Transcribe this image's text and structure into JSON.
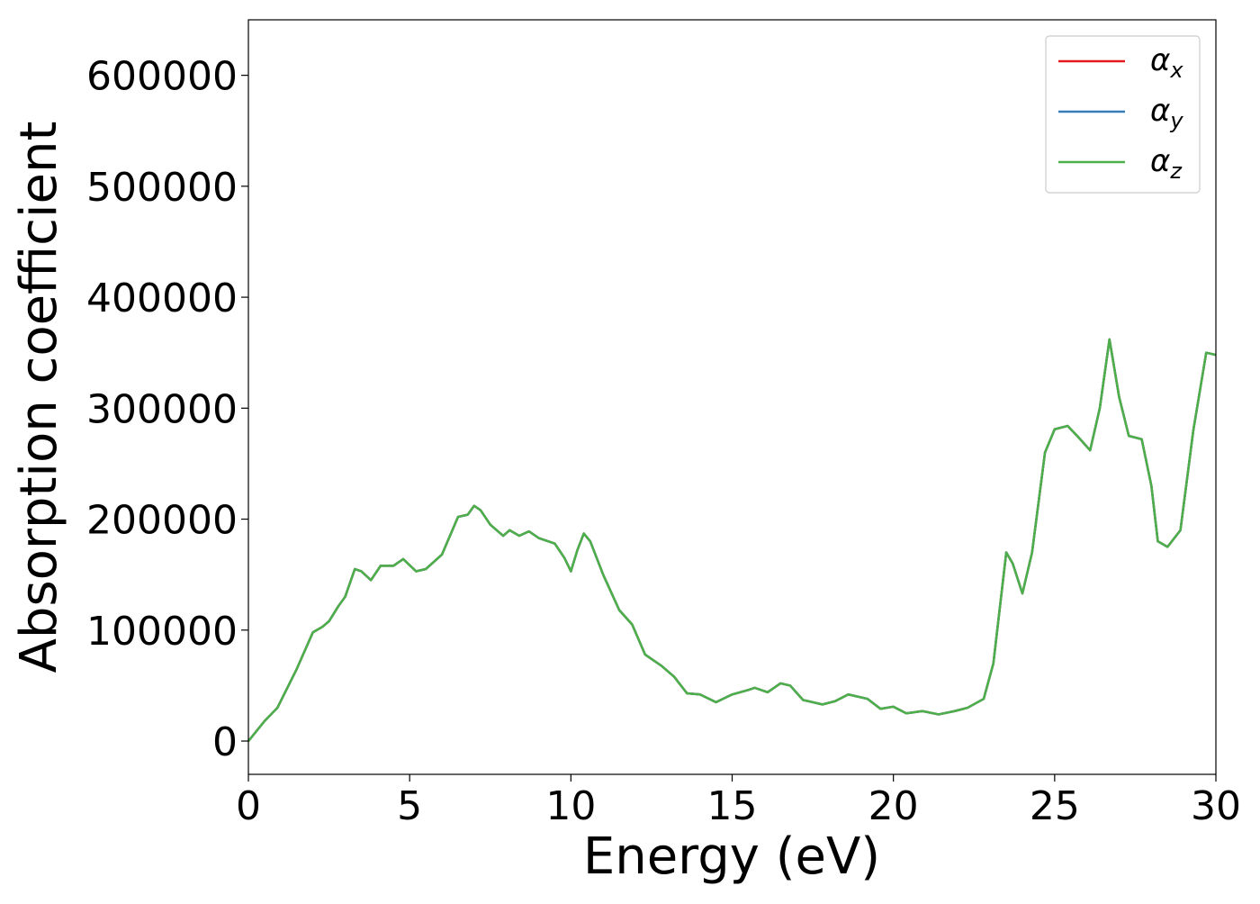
{
  "chart_data": {
    "type": "line",
    "xlabel": "Energy (eV)",
    "ylabel": "Absorption coefficient",
    "x": [
      0,
      0.5,
      0.9,
      1.5,
      2.0,
      2.3,
      2.5,
      2.8,
      3.0,
      3.3,
      3.5,
      3.8,
      4.1,
      4.5,
      4.8,
      5.2,
      5.5,
      6.0,
      6.5,
      6.8,
      7.0,
      7.2,
      7.5,
      7.9,
      8.1,
      8.4,
      8.7,
      9.0,
      9.5,
      9.8,
      10.0,
      10.2,
      10.4,
      10.6,
      11.0,
      11.5,
      11.9,
      12.3,
      12.8,
      13.2,
      13.6,
      14.0,
      14.5,
      15.0,
      15.5,
      15.7,
      16.1,
      16.5,
      16.8,
      17.2,
      17.8,
      18.2,
      18.6,
      19.2,
      19.6,
      20.0,
      20.4,
      20.9,
      21.4,
      21.9,
      22.3,
      22.8,
      23.1,
      23.5,
      23.7,
      24.0,
      24.3,
      24.7,
      25.0,
      25.4,
      25.7,
      26.1,
      26.4,
      26.7,
      27.0,
      27.3,
      27.7,
      28.0,
      28.2,
      28.5,
      28.9,
      29.3,
      29.7,
      30.0
    ],
    "series": [
      {
        "name": "αx",
        "color": "#e41a1c",
        "values": [
          0,
          18000,
          30000,
          65000,
          98000,
          103000,
          108000,
          122000,
          130000,
          155000,
          153000,
          145000,
          158000,
          158000,
          164000,
          153000,
          155000,
          168000,
          202000,
          204000,
          212000,
          208000,
          195000,
          185000,
          190000,
          185000,
          189000,
          183000,
          178000,
          165000,
          153000,
          172000,
          187000,
          180000,
          150000,
          118000,
          105000,
          78000,
          68000,
          58000,
          43000,
          42000,
          35000,
          42000,
          46000,
          48000,
          44000,
          52000,
          50000,
          37000,
          33000,
          36000,
          42000,
          38000,
          29000,
          31000,
          25000,
          27000,
          24000,
          27000,
          30000,
          38000,
          70000,
          170000,
          160000,
          133000,
          170000,
          260000,
          281000,
          284000,
          275000,
          262000,
          300000,
          362000,
          310000,
          275000,
          272000,
          230000,
          180000,
          175000,
          190000,
          280000,
          350000,
          348000
        ]
      },
      {
        "name": "αy",
        "color": "#377eb8",
        "values": [
          0,
          18000,
          30000,
          65000,
          98000,
          103000,
          108000,
          122000,
          130000,
          155000,
          153000,
          145000,
          158000,
          158000,
          164000,
          153000,
          155000,
          168000,
          202000,
          204000,
          212000,
          208000,
          195000,
          185000,
          190000,
          185000,
          189000,
          183000,
          178000,
          165000,
          153000,
          172000,
          187000,
          180000,
          150000,
          118000,
          105000,
          78000,
          68000,
          58000,
          43000,
          42000,
          35000,
          42000,
          46000,
          48000,
          44000,
          52000,
          50000,
          37000,
          33000,
          36000,
          42000,
          38000,
          29000,
          31000,
          25000,
          27000,
          24000,
          27000,
          30000,
          38000,
          70000,
          170000,
          160000,
          133000,
          170000,
          260000,
          281000,
          284000,
          275000,
          262000,
          300000,
          362000,
          310000,
          275000,
          272000,
          230000,
          180000,
          175000,
          190000,
          280000,
          350000,
          348000
        ]
      },
      {
        "name": "αz",
        "color": "#4daf4a",
        "values": [
          0,
          18000,
          30000,
          65000,
          98000,
          103000,
          108000,
          122000,
          130000,
          155000,
          153000,
          145000,
          158000,
          158000,
          164000,
          153000,
          155000,
          168000,
          202000,
          204000,
          212000,
          208000,
          195000,
          185000,
          190000,
          185000,
          189000,
          183000,
          178000,
          165000,
          153000,
          172000,
          187000,
          180000,
          150000,
          118000,
          105000,
          78000,
          68000,
          58000,
          43000,
          42000,
          35000,
          42000,
          46000,
          48000,
          44000,
          52000,
          50000,
          37000,
          33000,
          36000,
          42000,
          38000,
          29000,
          31000,
          25000,
          27000,
          24000,
          27000,
          30000,
          38000,
          70000,
          170000,
          160000,
          133000,
          170000,
          260000,
          281000,
          284000,
          275000,
          262000,
          300000,
          362000,
          310000,
          275000,
          272000,
          230000,
          180000,
          175000,
          190000,
          280000,
          350000,
          348000
        ]
      }
    ],
    "xlim": [
      0,
      30
    ],
    "xticks": [
      0,
      5,
      10,
      15,
      20,
      25,
      30
    ],
    "ylim": [
      -30000,
      650000
    ],
    "yticks": [
      0,
      100000,
      200000,
      300000,
      400000,
      500000,
      600000
    ],
    "legend": "upper right"
  }
}
